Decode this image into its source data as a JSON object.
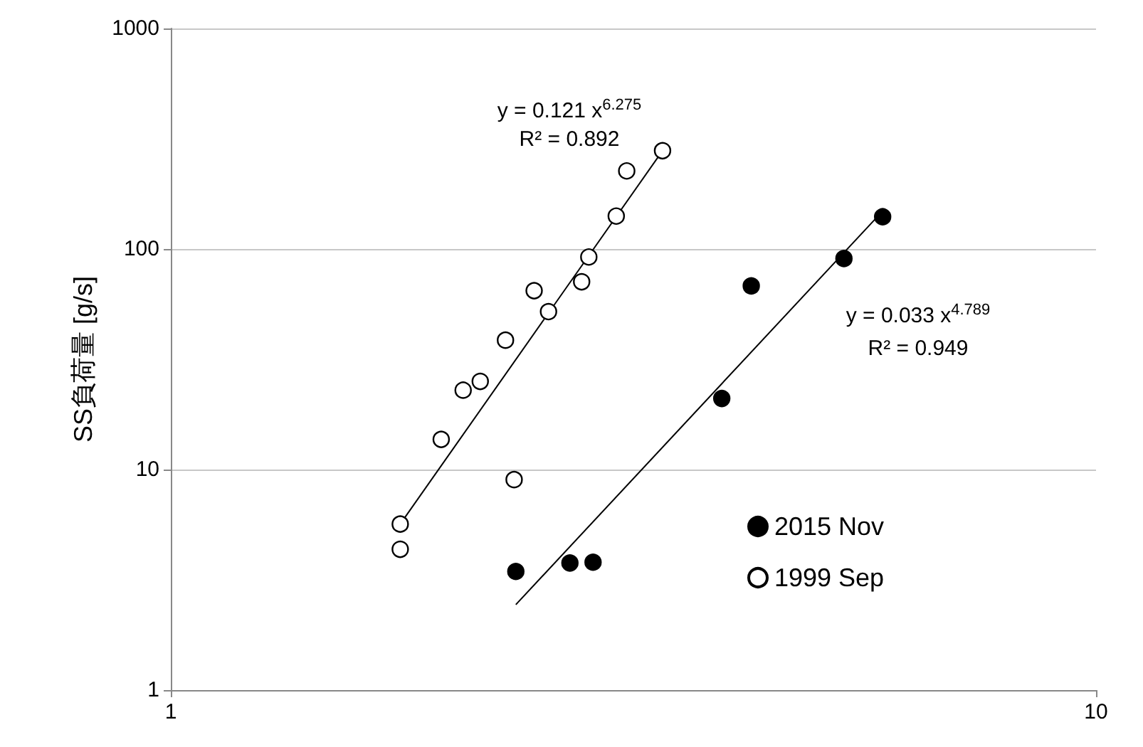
{
  "chart_data": {
    "type": "scatter",
    "ylabel": "SS負荷量 [g/s]",
    "log": "xy",
    "xlim": [
      1,
      10
    ],
    "xticks": [
      1,
      10
    ],
    "ylim": [
      1,
      1000
    ],
    "yticks": [
      1,
      10,
      100,
      1000
    ],
    "grid": "y",
    "legend": "bottom right",
    "marker": "circle",
    "series": [
      {
        "name": "2015 Nov",
        "color": "#000000",
        "x": [
          2.36,
          2.7,
          2.86,
          3.94,
          4.24,
          5.34,
          5.88
        ],
        "values": [
          3.45,
          3.77,
          3.8,
          21.0,
          68,
          90.5,
          140
        ]
      },
      {
        "name": "1999 Sep",
        "color": "#ffffff",
        "x": [
          1.77,
          1.77,
          1.96,
          2.07,
          2.16,
          2.3,
          2.35,
          2.47,
          2.56,
          2.78,
          2.83,
          3.03,
          3.11,
          3.4
        ],
        "values": [
          5.66,
          4.35,
          13.7,
          22.9,
          25.1,
          38.6,
          9.0,
          64.7,
          52,
          71,
          92,
          141,
          226,
          279
        ]
      },
      {
        "type": "line",
        "color": "#000000",
        "marker": "none",
        "x": [
          2.36,
          5.91
        ],
        "values": [
          2.44,
          152
        ]
      },
      {
        "type": "line",
        "color": "#000000",
        "marker": "none",
        "x": [
          1.77,
          3.4
        ],
        "values": [
          5.66,
          279
        ]
      }
    ],
    "annotations": [
      "y = 0.121 x$^{6.275}$",
      "R² = 0.892",
      "y = 0.033 x$^{4.789}$",
      "R² = 0.949"
    ]
  }
}
